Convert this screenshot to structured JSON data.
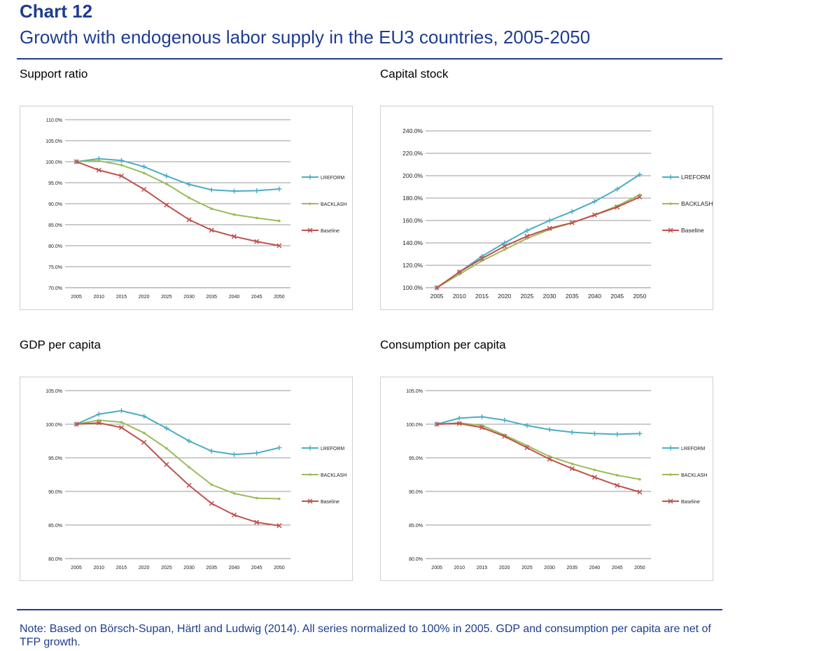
{
  "header": {
    "chart_label": "Chart 12",
    "title": "Growth with endogenous labor supply in the EU3 countries, 2005-2050"
  },
  "colors": {
    "brand": "#1f3c93",
    "LREFORM": "#4bacc6",
    "BACKLASH": "#9bbb59",
    "Baseline": "#c0504d"
  },
  "chart_data": [
    {
      "type": "line",
      "title": "Support ratio",
      "x": [
        "2005",
        "2010",
        "2015",
        "2020",
        "2025",
        "2030",
        "2035",
        "2040",
        "2045",
        "2050"
      ],
      "ylim": [
        70,
        110
      ],
      "yticks": [
        "110.0%",
        "105.0%",
        "100.0%",
        "95.0%",
        "90.0%",
        "85.0%",
        "80.0%",
        "75.0%",
        "70.0%"
      ],
      "grid": true,
      "legend": "right",
      "series": [
        {
          "name": "LREFORM",
          "values": [
            100.0,
            100.7,
            100.3,
            98.8,
            96.6,
            94.6,
            93.3,
            93.0,
            93.1,
            93.5
          ]
        },
        {
          "name": "BACKLASH",
          "values": [
            100.0,
            100.2,
            99.2,
            97.3,
            94.7,
            91.4,
            88.8,
            87.4,
            86.6,
            85.9
          ]
        },
        {
          "name": "Baseline",
          "values": [
            100.0,
            98.0,
            96.6,
            93.4,
            89.7,
            86.2,
            83.7,
            82.2,
            81.0,
            80.0
          ]
        }
      ]
    },
    {
      "type": "line",
      "title": "Capital stock",
      "x": [
        "2005",
        "2010",
        "2015",
        "2020",
        "2025",
        "2030",
        "2035",
        "2040",
        "2045",
        "2050"
      ],
      "ylim": [
        100,
        240
      ],
      "yticks": [
        "240.0%",
        "220.0%",
        "200.0%",
        "180.0%",
        "160.0%",
        "140.0%",
        "120.0%",
        "100.0%"
      ],
      "grid": true,
      "legend": "right",
      "series": [
        {
          "name": "LREFORM",
          "values": [
            100,
            114,
            128,
            140,
            151,
            160,
            168,
            177,
            188,
            201
          ]
        },
        {
          "name": "BACKLASH",
          "values": [
            100,
            112,
            124,
            134,
            144,
            152,
            158,
            165,
            173,
            183
          ]
        },
        {
          "name": "Baseline",
          "values": [
            100,
            114,
            126,
            137,
            146,
            153,
            158,
            165,
            172,
            181
          ]
        }
      ]
    },
    {
      "type": "line",
      "title": "GDP per capita",
      "x": [
        "2005",
        "2010",
        "2015",
        "2020",
        "2025",
        "2030",
        "2035",
        "2040",
        "2045",
        "2050"
      ],
      "ylim": [
        80,
        105
      ],
      "yticks": [
        "105.0%",
        "100.0%",
        "95.0%",
        "90.0%",
        "85.0%",
        "80.0%"
      ],
      "grid": true,
      "legend": "right",
      "series": [
        {
          "name": "LREFORM",
          "values": [
            100.0,
            101.5,
            102.0,
            101.2,
            99.4,
            97.5,
            96.0,
            95.5,
            95.7,
            96.5
          ]
        },
        {
          "name": "BACKLASH",
          "values": [
            100.0,
            100.6,
            100.3,
            98.7,
            96.4,
            93.6,
            91.0,
            89.7,
            89.0,
            88.9
          ]
        },
        {
          "name": "Baseline",
          "values": [
            100.0,
            100.2,
            99.5,
            97.3,
            94.0,
            90.9,
            88.2,
            86.5,
            85.4,
            84.9
          ]
        }
      ]
    },
    {
      "type": "line",
      "title": "Consumption per capita",
      "x": [
        "2005",
        "2010",
        "2015",
        "2020",
        "2025",
        "2030",
        "2035",
        "2040",
        "2045",
        "2050"
      ],
      "ylim": [
        80,
        105
      ],
      "yticks": [
        "105.0%",
        "100.0%",
        "95.0%",
        "90.0%",
        "85.0%",
        "80.0%"
      ],
      "grid": true,
      "legend": "right",
      "series": [
        {
          "name": "LREFORM",
          "values": [
            100.0,
            100.9,
            101.1,
            100.6,
            99.8,
            99.2,
            98.8,
            98.6,
            98.5,
            98.6
          ]
        },
        {
          "name": "BACKLASH",
          "values": [
            100.0,
            100.2,
            99.8,
            98.4,
            96.8,
            95.2,
            94.1,
            93.2,
            92.4,
            91.8
          ]
        },
        {
          "name": "Baseline",
          "values": [
            100.0,
            100.1,
            99.5,
            98.2,
            96.5,
            94.8,
            93.4,
            92.1,
            90.9,
            89.9
          ]
        }
      ]
    }
  ],
  "note": "Note: Based on Börsch-Supan, Härtl and Ludwig (2014). All series normalized to 100% in 2005. GDP and consumption per capita are net of TFP growth."
}
